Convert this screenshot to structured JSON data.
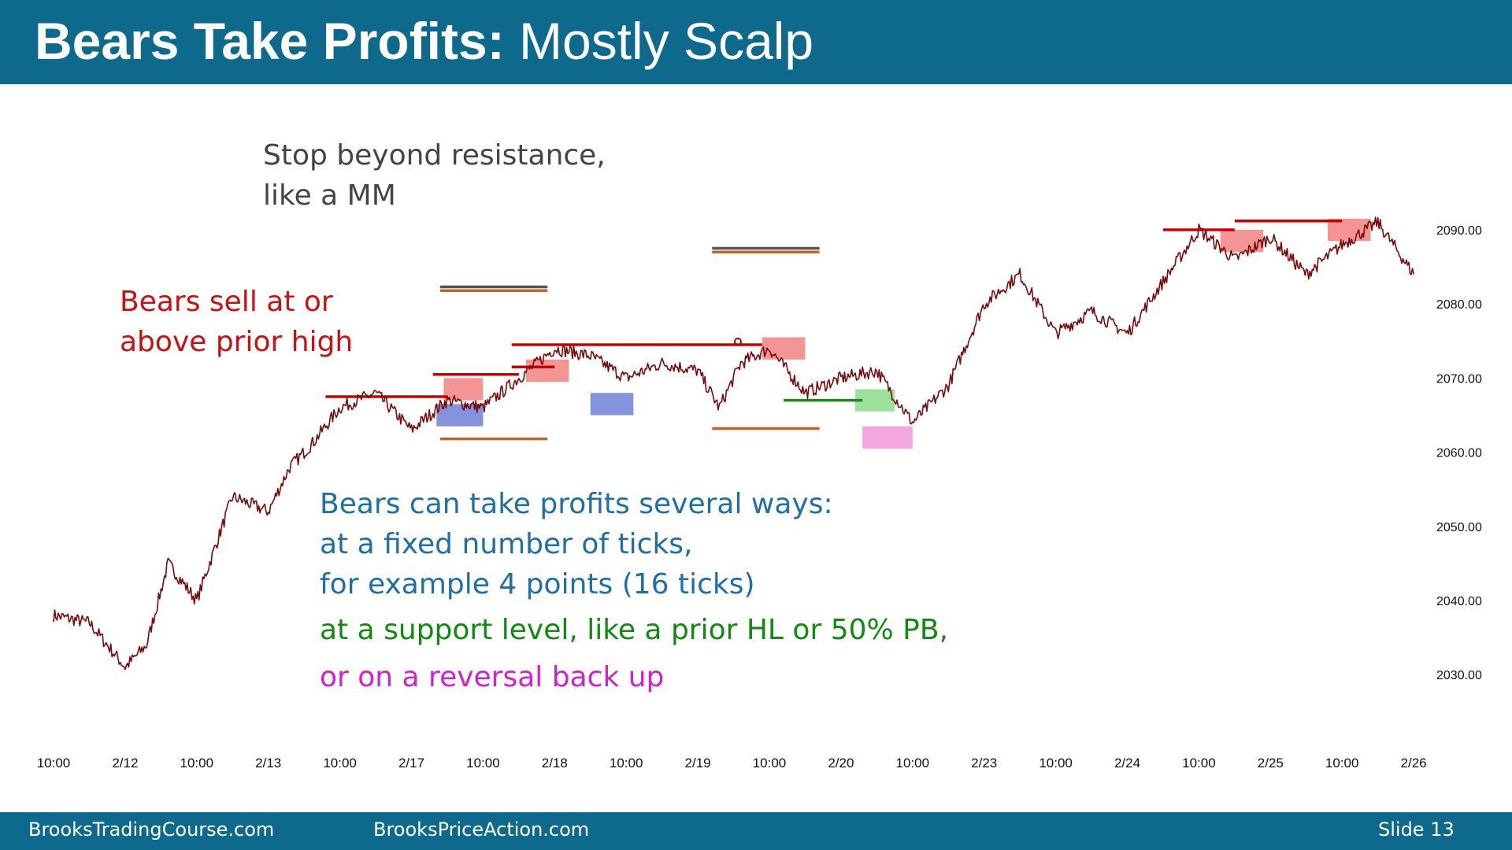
{
  "header": {
    "title_bold": "Bears Take Profits:",
    "title_regular": " Mostly Scalp"
  },
  "annotations": {
    "stop": [
      "Stop beyond resistance,",
      "like a MM"
    ],
    "bears_sell": [
      "Bears sell at or",
      "above prior high"
    ],
    "take_profits": [
      "Bears can take profits several ways:",
      "at a fixed number of ticks,",
      "for example 4 points (16 ticks)"
    ],
    "support": "at a support level, like a prior HL or 50% PB,",
    "reversal": "or on a reversal back up"
  },
  "footer": {
    "site1": "BrooksTradingCourse.com",
    "site2": "BrooksPriceAction.com",
    "slide": "Slide  13"
  },
  "colors": {
    "header_bg": "#0d6a8d",
    "price": "#7a0a0a",
    "resistance": "#cc0000",
    "support": "#1a8a1a",
    "stop_gray": "#555555",
    "stop_orange": "#c0652a",
    "red_zone": "#f07070",
    "blue_zone": "#5a6fd0",
    "green_zone": "#7ad67a",
    "pink_zone": "#f080d0",
    "blue_text": "#1e6fa8",
    "green_text": "#108a10",
    "magenta_text": "#d020d0",
    "red_text": "#cc1010",
    "gray_text": "#444444"
  },
  "chart_data": {
    "type": "line",
    "x_ticks": [
      "10:00",
      "2/12",
      "10:00",
      "2/13",
      "10:00",
      "2/17",
      "10:00",
      "2/18",
      "10:00",
      "2/19",
      "10:00",
      "2/20",
      "10:00",
      "2/23",
      "10:00",
      "2/24",
      "10:00",
      "2/25",
      "10:00",
      "2/26"
    ],
    "y_ticks": [
      "2090.00",
      "2080.00",
      "2070.00",
      "2060.00",
      "2050.00",
      "2040.00",
      "2030.00"
    ],
    "ylim": [
      2027,
      2093
    ],
    "axis_position": "right",
    "series": [
      {
        "x": [
          0,
          0.5,
          1,
          1.3,
          1.6,
          2,
          2.5,
          3,
          3.3,
          3.6,
          4,
          4.5,
          5,
          5.5,
          6,
          6.5,
          7,
          7.5,
          8,
          8.5,
          9,
          9.3,
          9.6,
          10,
          10.5,
          11,
          11.5,
          12,
          12.5,
          13,
          13.5,
          14,
          14.5,
          15,
          15.5,
          16,
          16.5,
          17,
          17.5,
          18,
          18.5,
          19
        ],
        "values": [
          2038,
          2037,
          2031,
          2034,
          2045,
          2040,
          2054,
          2052,
          2058,
          2061,
          2066,
          2068,
          2063,
          2067,
          2066,
          2070,
          2074,
          2073,
          2070,
          2072,
          2071,
          2066,
          2072,
          2074,
          2068,
          2070,
          2071,
          2064,
          2069,
          2080,
          2084,
          2076,
          2079,
          2076,
          2083,
          2090,
          2086,
          2089,
          2084,
          2088,
          2091,
          2084
        ]
      }
    ],
    "zones": [
      {
        "color": "red",
        "x0": 5.45,
        "x1": 6.0,
        "y_low": 2067,
        "y_high": 2070
      },
      {
        "color": "blue",
        "x0": 5.35,
        "x1": 6.0,
        "y_low": 2063.5,
        "y_high": 2066.5
      },
      {
        "color": "red",
        "x0": 6.6,
        "x1": 7.2,
        "y_low": 2069.5,
        "y_high": 2072.5
      },
      {
        "color": "blue",
        "x0": 7.5,
        "x1": 8.1,
        "y_low": 2065,
        "y_high": 2068
      },
      {
        "color": "red",
        "x0": 9.9,
        "x1": 10.5,
        "y_low": 2072.5,
        "y_high": 2075.5
      },
      {
        "color": "green",
        "x0": 11.2,
        "x1": 11.75,
        "y_low": 2065.5,
        "y_high": 2068.5
      },
      {
        "color": "pink",
        "x0": 11.3,
        "x1": 12.0,
        "y_low": 2060.5,
        "y_high": 2063.5
      },
      {
        "color": "red",
        "x0": 16.3,
        "x1": 16.9,
        "y_low": 2087,
        "y_high": 2090
      },
      {
        "color": "red",
        "x0": 17.8,
        "x1": 18.4,
        "y_low": 2088.5,
        "y_high": 2091.5
      }
    ],
    "lines": [
      {
        "color": "red",
        "x0": 3.8,
        "x1": 5.5,
        "y": 2067.5
      },
      {
        "color": "red",
        "x0": 5.3,
        "x1": 6.5,
        "y": 2070.5
      },
      {
        "color": "red",
        "x0": 6.4,
        "x1": 7.0,
        "y": 2071.5
      },
      {
        "color": "red",
        "x0": 6.4,
        "x1": 9.9,
        "y": 2074.5
      },
      {
        "color": "red",
        "x0": 15.5,
        "x1": 16.5,
        "y": 2090
      },
      {
        "color": "red",
        "x0": 16.5,
        "x1": 18.0,
        "y": 2091.2
      },
      {
        "color": "green",
        "x0": 10.2,
        "x1": 11.3,
        "y": 2067
      },
      {
        "color": "gray",
        "x0": 5.4,
        "x1": 6.9,
        "y": 2082.3
      },
      {
        "color": "orange",
        "x0": 5.4,
        "x1": 6.9,
        "y": 2081.8
      },
      {
        "color": "orange",
        "x0": 5.4,
        "x1": 6.9,
        "y": 2061.8
      },
      {
        "color": "gray",
        "x0": 9.2,
        "x1": 10.7,
        "y": 2087.5
      },
      {
        "color": "orange",
        "x0": 9.2,
        "x1": 10.7,
        "y": 2087.0
      },
      {
        "color": "orange",
        "x0": 9.2,
        "x1": 10.7,
        "y": 2063.2
      }
    ]
  }
}
